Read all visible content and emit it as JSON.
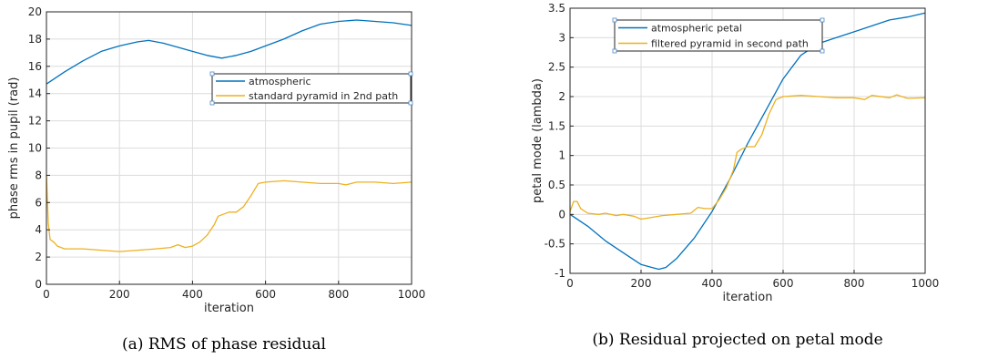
{
  "chart_data": [
    {
      "type": "line",
      "caption": "(a) RMS of phase residual",
      "xlabel": "iteration",
      "ylabel": "phase rms in pupil (rad)",
      "xlim": [
        0,
        1000
      ],
      "ylim": [
        0,
        20
      ],
      "xticks": [
        0,
        200,
        400,
        600,
        800,
        1000
      ],
      "yticks": [
        0,
        2,
        4,
        6,
        8,
        10,
        12,
        14,
        16,
        18,
        20
      ],
      "grid": true,
      "legend_position": "center-right",
      "series": [
        {
          "name": "atmospheric",
          "color": "#0072BD",
          "x": [
            0,
            50,
            100,
            150,
            200,
            250,
            280,
            320,
            360,
            400,
            440,
            480,
            520,
            560,
            600,
            650,
            700,
            750,
            800,
            850,
            900,
            950,
            1000
          ],
          "y": [
            14.7,
            15.6,
            16.4,
            17.1,
            17.5,
            17.8,
            17.9,
            17.7,
            17.4,
            17.1,
            16.8,
            16.6,
            16.8,
            17.1,
            17.5,
            18.0,
            18.6,
            19.1,
            19.3,
            19.4,
            19.3,
            19.2,
            19.0
          ]
        },
        {
          "name": "standard pyramid in 2nd path",
          "color": "#EDB120",
          "x": [
            0,
            5,
            10,
            20,
            30,
            50,
            80,
            100,
            150,
            200,
            250,
            300,
            340,
            360,
            380,
            400,
            420,
            440,
            460,
            470,
            480,
            500,
            520,
            540,
            560,
            580,
            600,
            650,
            700,
            750,
            800,
            820,
            850,
            900,
            950,
            1000
          ],
          "y": [
            8.0,
            4.5,
            3.3,
            3.1,
            2.8,
            2.6,
            2.6,
            2.6,
            2.5,
            2.4,
            2.5,
            2.6,
            2.7,
            2.9,
            2.7,
            2.8,
            3.1,
            3.6,
            4.4,
            5.0,
            5.1,
            5.3,
            5.3,
            5.7,
            6.5,
            7.4,
            7.5,
            7.6,
            7.5,
            7.4,
            7.4,
            7.3,
            7.5,
            7.5,
            7.4,
            7.5
          ]
        }
      ]
    },
    {
      "type": "line",
      "caption": "(b) Residual projected on petal mode",
      "xlabel": "iteration",
      "ylabel": "petal mode (lambda)",
      "xlim": [
        0,
        1000
      ],
      "ylim": [
        -1,
        3.5
      ],
      "xticks": [
        0,
        200,
        400,
        600,
        800,
        1000
      ],
      "yticks": [
        -1,
        -0.5,
        0,
        0.5,
        1,
        1.5,
        2,
        2.5,
        3,
        3.5
      ],
      "grid": true,
      "legend_position": "top-left",
      "series": [
        {
          "name": "atmospheric petal",
          "color": "#0072BD",
          "x": [
            0,
            50,
            100,
            150,
            200,
            230,
            250,
            270,
            300,
            350,
            400,
            450,
            500,
            550,
            600,
            650,
            700,
            750,
            800,
            850,
            900,
            950,
            1000
          ],
          "y": [
            0.0,
            -0.2,
            -0.45,
            -0.65,
            -0.85,
            -0.9,
            -0.93,
            -0.9,
            -0.75,
            -0.4,
            0.05,
            0.6,
            1.2,
            1.75,
            2.3,
            2.7,
            2.9,
            3.0,
            3.1,
            3.2,
            3.3,
            3.35,
            3.42
          ]
        },
        {
          "name": "filtered pyramid in second path",
          "color": "#EDB120",
          "x": [
            0,
            10,
            20,
            30,
            50,
            80,
            100,
            130,
            150,
            180,
            200,
            230,
            260,
            300,
            340,
            360,
            380,
            400,
            420,
            440,
            460,
            470,
            480,
            500,
            520,
            540,
            560,
            580,
            600,
            650,
            700,
            750,
            800,
            830,
            850,
            900,
            920,
            950,
            1000
          ],
          "y": [
            0.05,
            0.22,
            0.22,
            0.1,
            0.02,
            0.0,
            0.02,
            -0.02,
            0.0,
            -0.03,
            -0.08,
            -0.05,
            -0.02,
            0.0,
            0.02,
            0.12,
            0.1,
            0.1,
            0.25,
            0.45,
            0.75,
            1.05,
            1.1,
            1.15,
            1.15,
            1.35,
            1.7,
            1.95,
            2.0,
            2.02,
            2.0,
            1.98,
            1.98,
            1.95,
            2.02,
            1.98,
            2.03,
            1.97,
            1.98
          ]
        }
      ]
    }
  ]
}
